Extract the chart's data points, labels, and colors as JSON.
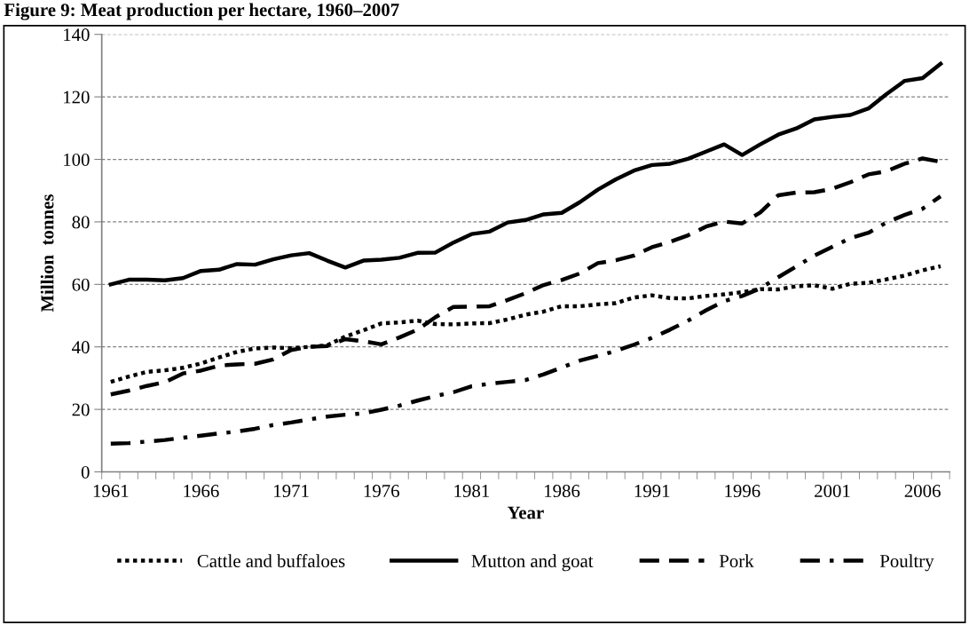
{
  "chart_data": {
    "type": "line",
    "title": "Figure 9: Meat production per hectare, 1960–2007",
    "xlabel": "Year",
    "ylabel": "Million  tonnes",
    "x": [
      1961,
      1962,
      1963,
      1964,
      1965,
      1966,
      1967,
      1968,
      1969,
      1970,
      1971,
      1972,
      1973,
      1974,
      1975,
      1976,
      1977,
      1978,
      1979,
      1980,
      1981,
      1982,
      1983,
      1984,
      1985,
      1986,
      1987,
      1988,
      1989,
      1990,
      1991,
      1992,
      1993,
      1994,
      1995,
      1996,
      1997,
      1998,
      1999,
      2000,
      2001,
      2002,
      2003,
      2004,
      2005,
      2006,
      2007
    ],
    "xlim": [
      1960.5,
      2007.5
    ],
    "xticks": [
      1961,
      1966,
      1971,
      1976,
      1981,
      1986,
      1991,
      1996,
      2001,
      2006
    ],
    "ylim": [
      0,
      140
    ],
    "yticks": [
      0,
      20,
      40,
      60,
      80,
      100,
      120,
      140
    ],
    "grid": "y",
    "legend": "bottom",
    "marker": "none",
    "series": [
      {
        "name": "Cattle and buffaloes",
        "color": "#000000",
        "line_style": "dotted",
        "values": [
          28.8,
          30.5,
          32,
          32.5,
          33.3,
          34.7,
          36.6,
          38.4,
          39.5,
          39.8,
          39.6,
          40,
          40.5,
          43.3,
          45.3,
          47.5,
          47.8,
          48.4,
          47.3,
          47.2,
          47.5,
          47.6,
          48.8,
          50.3,
          51.3,
          53,
          53,
          53.6,
          54,
          55.8,
          56.5,
          55.6,
          55.5,
          56.3,
          56.8,
          57.5,
          58.5,
          58.4,
          59.4,
          59.7,
          58.6,
          60.2,
          60.5,
          61.6,
          62.8,
          64.5,
          65.8
        ]
      },
      {
        "name": "Mutton and goat",
        "color": "#000000",
        "line_style": "solid",
        "values": [
          60,
          61.5,
          61.5,
          61.3,
          62,
          64.3,
          64.7,
          66.5,
          66.3,
          68,
          69.3,
          70,
          67.6,
          65.4,
          67.6,
          67.9,
          68.5,
          70.1,
          70.2,
          73.4,
          76.1,
          76.9,
          79.8,
          80.6,
          82.4,
          82.9,
          86.3,
          90.3,
          93.6,
          96.4,
          98.2,
          98.6,
          100.2,
          102.5,
          104.8,
          101.4,
          104.8,
          107.9,
          109.9,
          112.8,
          113.6,
          114.2,
          116.3,
          120.9,
          125.1,
          126,
          130.6
        ]
      },
      {
        "name": "Pork",
        "color": "#000000",
        "line_style": "dashed",
        "values": [
          24.8,
          26,
          27.5,
          28.7,
          31.5,
          32.4,
          34,
          34.4,
          34.6,
          36,
          39,
          40,
          40.3,
          42.5,
          41.8,
          40.8,
          43,
          45.5,
          49.5,
          52.8,
          52.9,
          53,
          55,
          57.2,
          59.8,
          61.4,
          63.5,
          66.8,
          67.7,
          69.2,
          71.9,
          73.6,
          75.7,
          78.5,
          80.1,
          79.5,
          83,
          88.5,
          89.4,
          89.5,
          90.6,
          92.7,
          95.2,
          96.2,
          98.6,
          100.3,
          99.2
        ]
      },
      {
        "name": "Poultry",
        "color": "#000000",
        "line_style": "dashdot",
        "values": [
          9,
          9.2,
          9.7,
          10.2,
          10.9,
          11.6,
          12.3,
          12.9,
          13.8,
          15,
          15.8,
          16.8,
          17.7,
          18.3,
          18.7,
          19.9,
          21.2,
          22.8,
          24.3,
          25.5,
          27.4,
          28.2,
          28.8,
          29.4,
          31.2,
          33.4,
          35.6,
          37.1,
          38.7,
          40.7,
          42.9,
          45.5,
          48.4,
          51.7,
          54.6,
          56.3,
          58.7,
          62.3,
          65.7,
          69.2,
          72,
          74.8,
          76.5,
          79.8,
          82.2,
          84.2,
          88.2
        ]
      }
    ]
  }
}
